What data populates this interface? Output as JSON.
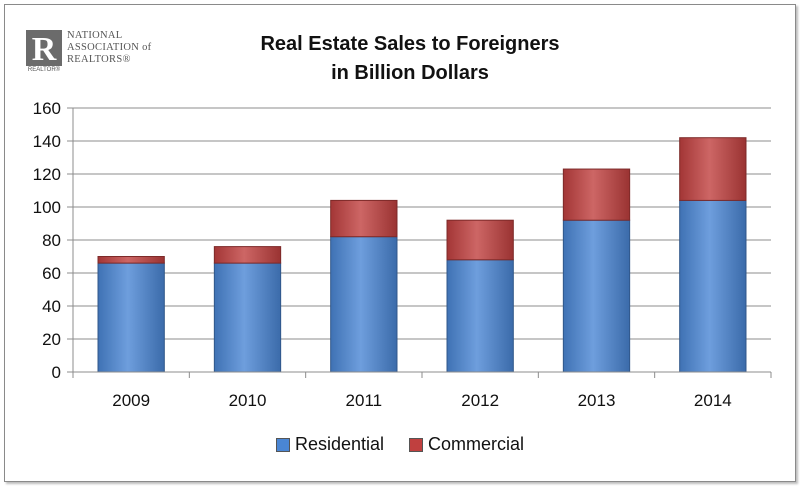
{
  "logo": {
    "lines": [
      "NATIONAL",
      "ASSOCIATION of",
      "REALTORS®"
    ],
    "sub": "REALTOR®",
    "mark": "R"
  },
  "chart_data": {
    "type": "bar",
    "stacked": true,
    "title": [
      "Real Estate Sales to Foreigners",
      "in Billion Dollars"
    ],
    "categories": [
      "2009",
      "2010",
      "2011",
      "2012",
      "2013",
      "2014"
    ],
    "series": [
      {
        "name": "Residential",
        "values": [
          66,
          66,
          82,
          68,
          92,
          104
        ],
        "color": "#4a86d4"
      },
      {
        "name": "Commercial",
        "values": [
          4,
          10,
          22,
          24,
          31,
          38
        ],
        "color": "#c0403f"
      }
    ],
    "ylim": [
      0,
      160
    ],
    "yticks": [
      "0",
      "20",
      "40",
      "60",
      "80",
      "100",
      "120",
      "140",
      "160"
    ],
    "grid": true,
    "legend_position": "bottom"
  }
}
